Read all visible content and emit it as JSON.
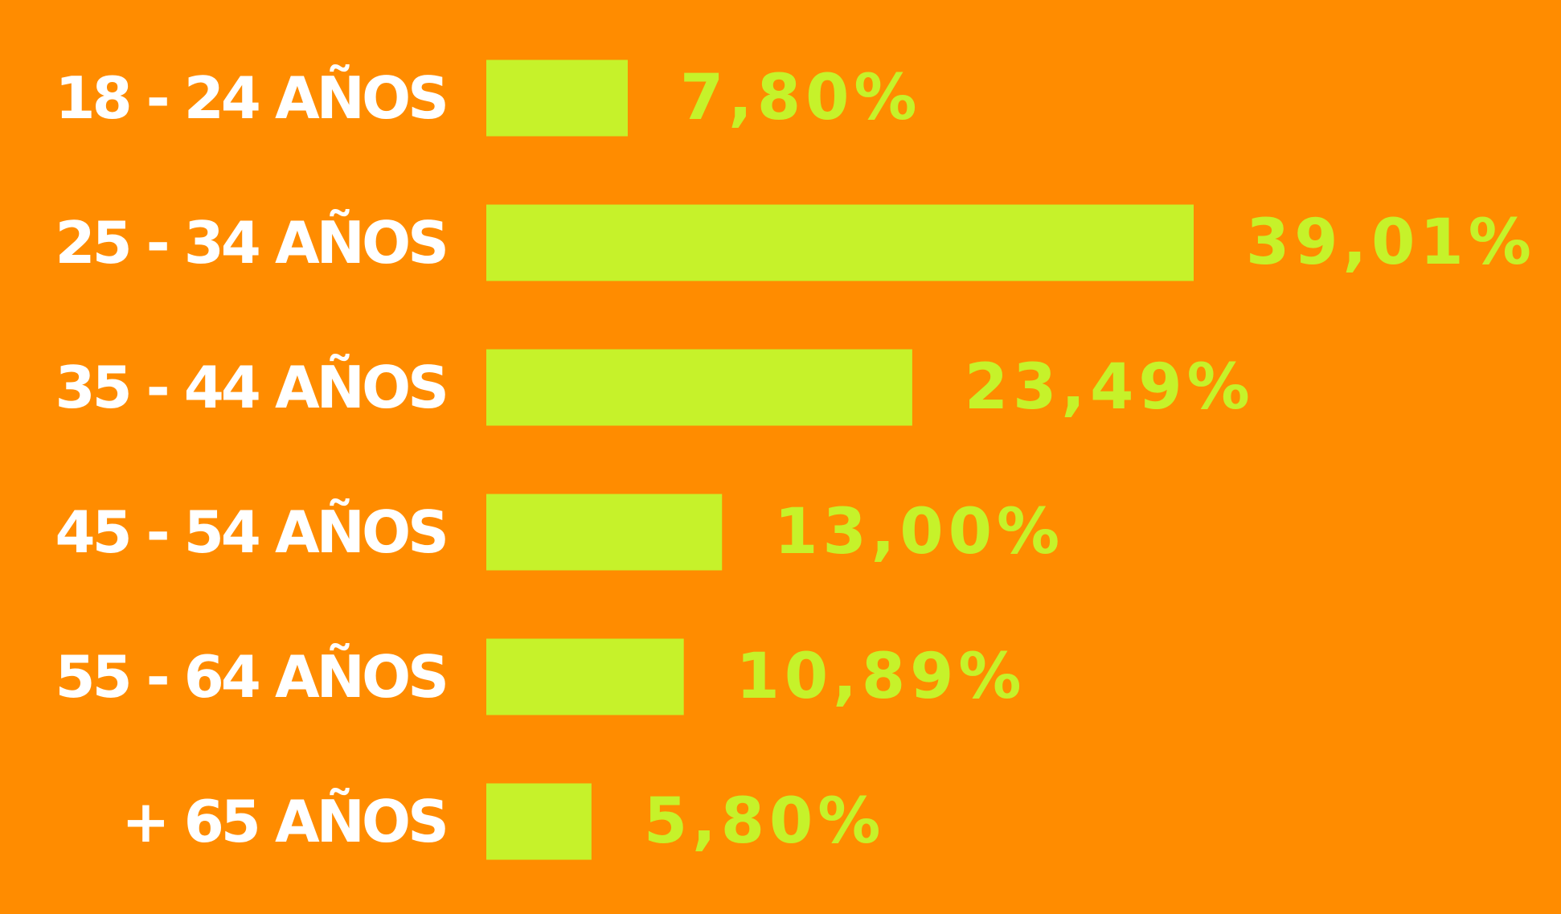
{
  "chart_data": {
    "type": "bar",
    "orientation": "horizontal",
    "categories": [
      "18 - 24 AÑOS",
      "25 - 34 AÑOS",
      "35 - 44 AÑOS",
      "45 - 54 AÑOS",
      "55 - 64 AÑOS",
      "+ 65 AÑOS"
    ],
    "values": [
      7.8,
      39.01,
      23.49,
      13.0,
      10.89,
      5.8
    ],
    "value_labels": [
      "7,80%",
      "39,01%",
      "23,49%",
      "13,00%",
      "10,89%",
      "5,80%"
    ],
    "color": "#c6f22a",
    "background": "#ff8c00",
    "label_color": "#ffffff"
  }
}
